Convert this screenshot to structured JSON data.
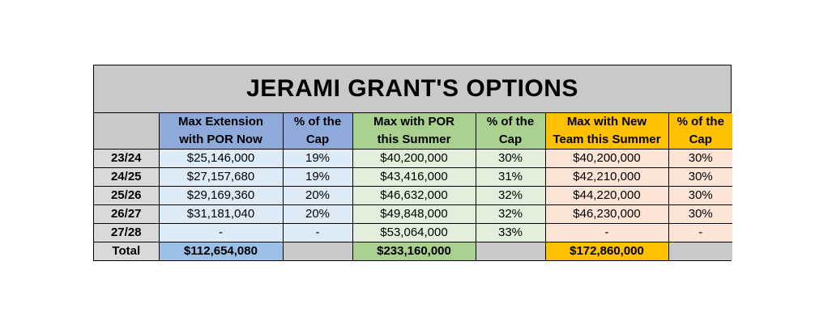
{
  "title": "JERAMI GRANT'S OPTIONS",
  "headers": {
    "col1_line1": "Max Extension",
    "col1_line2": "with POR Now",
    "col2_line1": "% of the",
    "col2_line2": "Cap",
    "col3_line1": "Max with POR",
    "col3_line2": "this Summer",
    "col4_line1": "% of the",
    "col4_line2": "Cap",
    "col5_line1": "Max with New",
    "col5_line2": "Team this Summer",
    "col6_line1": "% of the",
    "col6_line2": "Cap"
  },
  "rows": [
    {
      "year": "23/24",
      "ext": "$25,146,000",
      "ext_pct": "19%",
      "por": "$40,200,000",
      "por_pct": "30%",
      "new": "$40,200,000",
      "new_pct": "30%"
    },
    {
      "year": "24/25",
      "ext": "$27,157,680",
      "ext_pct": "19%",
      "por": "$43,416,000",
      "por_pct": "31%",
      "new": "$42,210,000",
      "new_pct": "30%"
    },
    {
      "year": "25/26",
      "ext": "$29,169,360",
      "ext_pct": "20%",
      "por": "$46,632,000",
      "por_pct": "32%",
      "new": "$44,220,000",
      "new_pct": "30%"
    },
    {
      "year": "26/27",
      "ext": "$31,181,040",
      "ext_pct": "20%",
      "por": "$49,848,000",
      "por_pct": "32%",
      "new": "$46,230,000",
      "new_pct": "30%"
    },
    {
      "year": "27/28",
      "ext": "-",
      "ext_pct": "-",
      "por": "$53,064,000",
      "por_pct": "33%",
      "new": "-",
      "new_pct": "-"
    }
  ],
  "total": {
    "label": "Total",
    "ext": "$112,654,080",
    "por": "$233,160,000",
    "new": "$172,860,000"
  }
}
